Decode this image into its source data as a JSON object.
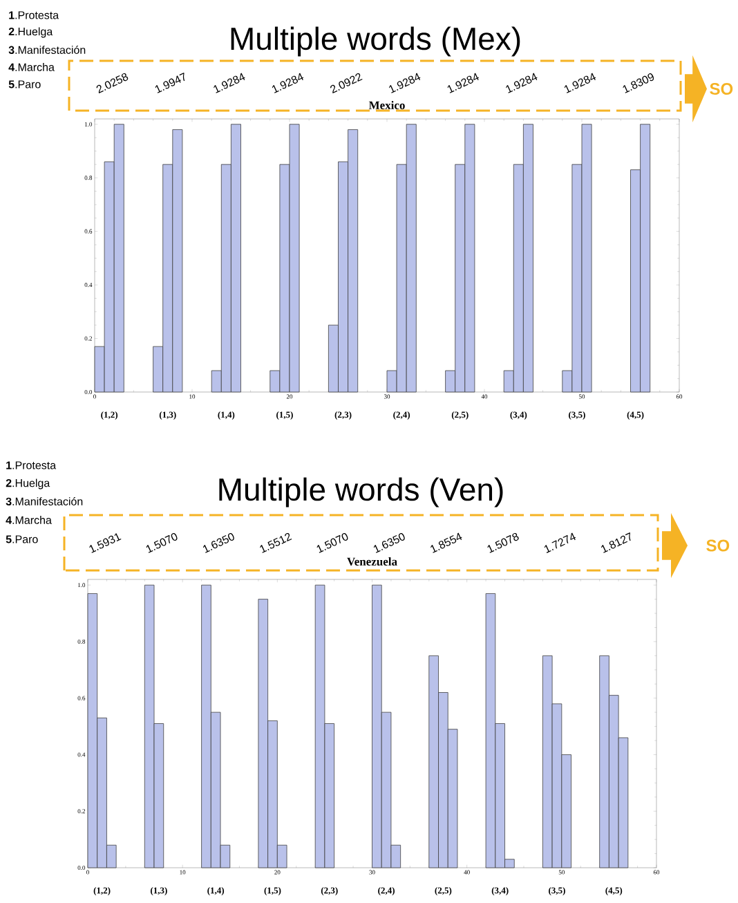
{
  "chart_data": [
    {
      "type": "histogram",
      "title": "Multiple words (Mex)",
      "subtitle": "Mexico",
      "color": "#b9c1ea",
      "bins": [
        0,
        1,
        2,
        3,
        4,
        5,
        6,
        7,
        8,
        9,
        10,
        11,
        12,
        13,
        14,
        15,
        16,
        17,
        18,
        19,
        20,
        21,
        22,
        23,
        24,
        25,
        26,
        27,
        28,
        29,
        30,
        31,
        32,
        33,
        34,
        35,
        36,
        37,
        38,
        39,
        40,
        41,
        42,
        43,
        44,
        45,
        46,
        47,
        48,
        49,
        50,
        51,
        52,
        53,
        54,
        55,
        56,
        57
      ],
      "values": [
        0.17,
        0.86,
        1.0,
        0,
        0,
        0,
        0.17,
        0.85,
        0.98,
        0,
        0,
        0,
        0.08,
        0.85,
        1.0,
        0,
        0,
        0,
        0.08,
        0.85,
        1.0,
        0,
        0,
        0,
        0.25,
        0.86,
        0.98,
        0,
        0,
        0,
        0.08,
        0.85,
        1.0,
        0,
        0,
        0,
        0.08,
        0.85,
        1.0,
        0,
        0,
        0,
        0.08,
        0.85,
        1.0,
        0,
        0,
        0,
        0.08,
        0.85,
        1.0,
        0,
        0,
        0,
        0,
        0.83,
        1.0
      ],
      "xlim": [
        0,
        60
      ],
      "ylim": [
        0,
        1.02
      ],
      "xticks": [
        0,
        10,
        20,
        30,
        40,
        50,
        60
      ],
      "yticks": [
        {
          "value": 0,
          "label": "0.0"
        },
        {
          "value": 0.2,
          "label": "0.2"
        },
        {
          "value": 0.4,
          "label": "0.4"
        },
        {
          "value": 0.6,
          "label": "0.6"
        },
        {
          "value": 0.8,
          "label": "0.8"
        },
        {
          "value": 1.0,
          "label": "1.0"
        }
      ],
      "annotations": [
        "**1**.Protesta",
        "**2**.Huelga",
        "**3**.Manifestación",
        "**4**.Marcha",
        "**5**.Paro",
        "SO",
        "2.0258",
        "1.9947",
        "1.9284",
        "1.9284",
        "2.0922",
        "1.9284",
        "1.9284",
        "1.9284",
        "1.9284",
        "1.8309",
        "(1,2)",
        "(1,3)",
        "(1,4)",
        "(1,5)",
        "(2,3)",
        "(2,4)",
        "(2,5)",
        "(3,4)",
        "(3,5)",
        "(4,5)"
      ]
    },
    {
      "type": "histogram",
      "title": "Multiple words (Ven)",
      "subtitle": "Venezuela",
      "color": "#b9c1ea",
      "bins": [
        0,
        1,
        2,
        3,
        4,
        5,
        6,
        7,
        8,
        9,
        10,
        11,
        12,
        13,
        14,
        15,
        16,
        17,
        18,
        19,
        20,
        21,
        22,
        23,
        24,
        25,
        26,
        27,
        28,
        29,
        30,
        31,
        32,
        33,
        34,
        35,
        36,
        37,
        38,
        39,
        40,
        41,
        42,
        43,
        44,
        45,
        46,
        47,
        48,
        49,
        50,
        51,
        52,
        53,
        54,
        55,
        56,
        57
      ],
      "values": [
        0.97,
        0.53,
        0.08,
        0,
        0,
        0,
        1.0,
        0.51,
        0,
        0,
        0,
        0,
        1.0,
        0.55,
        0.08,
        0,
        0,
        0,
        0.95,
        0.52,
        0.08,
        0,
        0,
        0,
        1.0,
        0.51,
        0,
        0,
        0,
        0,
        1.0,
        0.55,
        0.08,
        0,
        0,
        0,
        0.75,
        0.62,
        0.49,
        0,
        0,
        0,
        0.97,
        0.51,
        0.03,
        0,
        0,
        0,
        0.75,
        0.58,
        0.4,
        0,
        0,
        0,
        0.75,
        0.61,
        0.46
      ],
      "xlim": [
        0,
        60
      ],
      "ylim": [
        0,
        1.02
      ],
      "xticks": [
        0,
        10,
        20,
        30,
        40,
        50,
        60
      ],
      "yticks": [
        {
          "value": 0,
          "label": "0.0"
        },
        {
          "value": 0.2,
          "label": "0.2"
        },
        {
          "value": 0.4,
          "label": "0.4"
        },
        {
          "value": 0.6,
          "label": "0.6"
        },
        {
          "value": 0.8,
          "label": "0.8"
        },
        {
          "value": 1.0,
          "label": "1.0"
        }
      ],
      "annotations": [
        "**1**.Protesta",
        "**2**.Huelga",
        "**3**.Manifestación",
        "**4**.Marcha",
        "**5**.Paro",
        "SO",
        "1.5931",
        "1.5070",
        "1.6350",
        "1.5512",
        "1.5070",
        "1.6350",
        "1.8554",
        "1.5078",
        "1.7274",
        "1.8127",
        "(1,2)",
        "(1,3)",
        "(1,4)",
        "(1,5)",
        "(2,3)",
        "(2,4)",
        "(2,5)",
        "(3,4)",
        "(3,5)",
        "(4,5)"
      ]
    }
  ]
}
